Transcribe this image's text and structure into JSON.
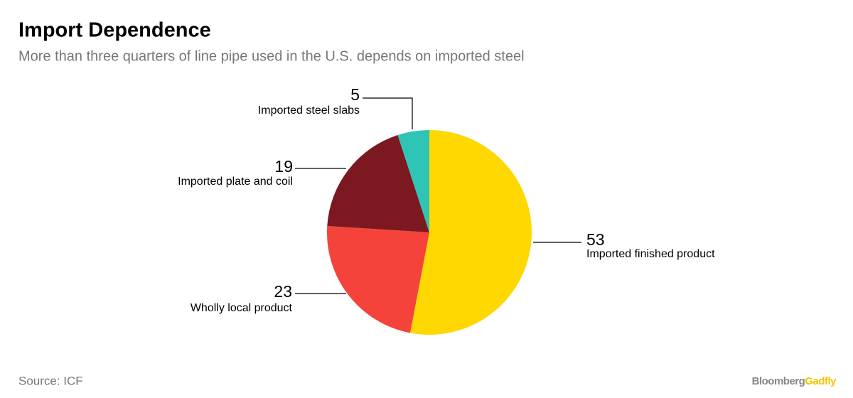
{
  "chart_data": {
    "type": "pie",
    "title": "Import Dependence",
    "subtitle": "More than three quarters of line pipe used in the U.S. depends on imported steel",
    "source": "Source: ICF",
    "brand": [
      "Bloomberg",
      "Gadfly"
    ],
    "categories": [
      "Imported finished product",
      "Wholly local product",
      "Imported plate and coil",
      "Imported steel slabs"
    ],
    "values": [
      53,
      23,
      19,
      5
    ],
    "colors": [
      "#fed800",
      "#f5433b",
      "#7c1820",
      "#2ec4b6"
    ]
  }
}
